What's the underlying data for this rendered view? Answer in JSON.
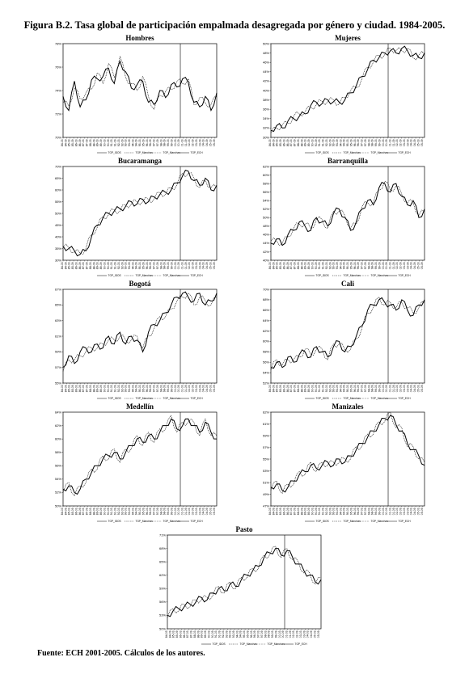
{
  "figure": {
    "title": "Figura B.2.  Tasa global de participación empalmada desagregada por género y ciudad. 1984-2005.",
    "source": "Fuente: ECH 2001-2005. Cálculos de los autores."
  },
  "legend_labels": [
    "TGP_IDOS",
    "TGP_Manchas",
    "TGP_Manchas",
    "TGP_ECH"
  ],
  "chart_data": [
    {
      "type": "line",
      "title": "Hombres",
      "ylim": [
        70,
        78
      ],
      "yticks": [
        "70%",
        "72%",
        "74%",
        "76%",
        "78%"
      ],
      "x_start": 1984,
      "x_end": 2005.75,
      "splice_at": 2000.6,
      "series": [
        {
          "values": [
            73.5,
            72.3,
            74.8,
            72.6,
            73.2,
            74.9,
            75.0,
            75.2,
            75.9,
            74.6,
            76.5,
            75.6,
            74.2,
            74.5,
            74.8,
            73.0,
            72.8,
            74.0,
            73.4,
            74.5,
            74.3,
            75.0,
            74.7,
            73.0,
            72.6,
            73.5,
            72.3,
            73.8
          ]
        },
        {
          "values": [
            73.0,
            72.7,
            74.2,
            73.3,
            73.8,
            74.1,
            75.5,
            74.6,
            76.3,
            75.1,
            76.9,
            75.1,
            74.6,
            74.0,
            75.2,
            73.5,
            72.4,
            73.6,
            73.9,
            74.1,
            74.8,
            74.6,
            75.0,
            72.8,
            73.4,
            72.9,
            72.8,
            73.5
          ]
        }
      ]
    },
    {
      "type": "line",
      "title": "Mujeres",
      "ylim": [
        30,
        50
      ],
      "yticks": [
        "30%",
        "32%",
        "34%",
        "36%",
        "38%",
        "40%",
        "42%",
        "44%",
        "46%",
        "48%",
        "50%"
      ],
      "x_start": 1984,
      "x_end": 2005.75,
      "splice_at": 2000.6,
      "series": [
        {
          "values": [
            31.5,
            32.5,
            32.0,
            33.5,
            34.0,
            34.5,
            35.0,
            36.8,
            37.5,
            37.2,
            38.0,
            37.6,
            37.5,
            38.0,
            39.5,
            41.0,
            43.0,
            44.5,
            46.5,
            47.0,
            48.0,
            48.5,
            48.0,
            49.0,
            48.5,
            47.5,
            47.0,
            48.0
          ]
        },
        {
          "values": [
            31.0,
            32.0,
            32.6,
            33.0,
            34.5,
            35.0,
            35.5,
            36.4,
            37.0,
            37.7,
            37.6,
            38.0,
            37.1,
            38.5,
            40.0,
            40.6,
            42.5,
            45.0,
            46.0,
            47.5,
            47.6,
            49.0,
            48.5,
            48.5,
            49.0,
            47.0,
            47.5,
            47.8
          ]
        }
      ]
    },
    {
      "type": "line",
      "title": "Bucaramanga",
      "ylim": [
        30,
        70
      ],
      "yticks": [
        "30%",
        "35%",
        "40%",
        "45%",
        "50%",
        "55%",
        "60%",
        "65%",
        "70%"
      ],
      "x_start": 1984,
      "x_end": 2005.75,
      "splice_at": 2000.6,
      "series": [
        {
          "values": [
            36.0,
            35.0,
            34.0,
            32.5,
            34.0,
            40.0,
            45.0,
            48.0,
            50.0,
            51.0,
            52.0,
            53.0,
            55.0,
            54.0,
            56.0,
            55.0,
            57.0,
            58.0,
            59.0,
            60.0,
            63.0,
            66.0,
            68.0,
            64.0,
            62.0,
            65.0,
            60.0,
            62.0
          ]
        },
        {
          "values": [
            35.5,
            35.5,
            33.5,
            33.0,
            35.0,
            41.0,
            44.0,
            48.5,
            49.5,
            51.5,
            51.0,
            53.5,
            54.0,
            55.0,
            55.0,
            56.0,
            56.0,
            59.0,
            58.0,
            61.0,
            62.0,
            67.0,
            67.0,
            65.0,
            61.0,
            64.0,
            61.0,
            61.0
          ]
        }
      ]
    },
    {
      "type": "line",
      "title": "Barranquilla",
      "ylim": [
        40,
        62
      ],
      "yticks": [
        "40%",
        "42%",
        "44%",
        "46%",
        "48%",
        "50%",
        "52%",
        "54%",
        "56%",
        "58%",
        "60%",
        "62%"
      ],
      "x_start": 1984,
      "x_end": 2005.75,
      "splice_at": 2000.6,
      "series": [
        {
          "values": [
            44.0,
            45.0,
            43.5,
            46.0,
            47.0,
            49.0,
            48.0,
            47.0,
            50.0,
            49.0,
            48.0,
            51.0,
            52.0,
            50.0,
            47.0,
            49.0,
            52.0,
            54.0,
            53.0,
            57.0,
            58.0,
            56.0,
            58.0,
            55.0,
            53.0,
            54.0,
            50.0,
            52.0
          ]
        },
        {
          "values": [
            44.5,
            44.5,
            44.0,
            45.5,
            47.5,
            48.5,
            48.5,
            47.5,
            49.5,
            49.5,
            47.5,
            51.5,
            51.5,
            50.5,
            47.5,
            48.5,
            52.5,
            53.5,
            53.5,
            56.5,
            58.5,
            56.5,
            57.5,
            55.5,
            53.5,
            53.5,
            50.5,
            51.5
          ]
        }
      ]
    },
    {
      "type": "line",
      "title": "Bogotá",
      "ylim": [
        55,
        67
      ],
      "yticks": [
        "55%",
        "57%",
        "59%",
        "61%",
        "63%",
        "65%",
        "67%"
      ],
      "x_start": 1984,
      "x_end": 2005.75,
      "splice_at": 2000.6,
      "series": [
        {
          "values": [
            57.0,
            58.5,
            57.5,
            59.0,
            59.5,
            59.0,
            60.0,
            59.5,
            61.0,
            60.0,
            61.5,
            60.0,
            61.0,
            60.5,
            59.0,
            61.5,
            62.5,
            63.0,
            64.0,
            65.0,
            66.0,
            66.5,
            66.0,
            65.5,
            66.5,
            65.0,
            65.5,
            66.5
          ]
        },
        {
          "values": [
            56.5,
            58.0,
            58.0,
            58.5,
            59.0,
            59.5,
            59.5,
            60.0,
            60.5,
            60.5,
            61.0,
            60.5,
            60.5,
            61.0,
            59.5,
            61.0,
            62.0,
            63.5,
            63.5,
            64.5,
            65.5,
            66.0,
            66.5,
            65.0,
            66.0,
            65.5,
            65.0,
            66.0
          ]
        }
      ]
    },
    {
      "type": "line",
      "title": "Cali",
      "ylim": [
        52,
        70
      ],
      "yticks": [
        "52%",
        "54%",
        "56%",
        "58%",
        "60%",
        "62%",
        "64%",
        "66%",
        "68%",
        "70%"
      ],
      "x_start": 1984,
      "x_end": 2005.75,
      "splice_at": 2000.6,
      "series": [
        {
          "values": [
            55.0,
            56.0,
            55.0,
            57.0,
            56.0,
            57.5,
            58.0,
            57.0,
            59.0,
            58.0,
            57.0,
            59.0,
            60.0,
            58.0,
            59.0,
            61.0,
            63.0,
            66.0,
            67.0,
            68.0,
            67.5,
            67.0,
            66.0,
            68.0,
            66.0,
            65.0,
            67.0,
            68.0
          ]
        },
        {
          "values": [
            54.5,
            56.5,
            55.5,
            56.5,
            56.5,
            57.0,
            58.5,
            57.5,
            58.5,
            58.5,
            56.5,
            59.5,
            59.5,
            58.5,
            58.5,
            60.5,
            62.5,
            65.5,
            66.5,
            68.5,
            67.0,
            67.5,
            66.5,
            67.5,
            66.5,
            65.5,
            66.5,
            67.5
          ]
        }
      ]
    },
    {
      "type": "line",
      "title": "Medellín",
      "ylim": [
        50,
        64
      ],
      "yticks": [
        "50%",
        "52%",
        "54%",
        "56%",
        "58%",
        "60%",
        "62%",
        "64%"
      ],
      "x_start": 1984,
      "x_end": 2005.75,
      "splice_at": 2000.6,
      "series": [
        {
          "values": [
            52.5,
            53.0,
            52.0,
            52.5,
            54.0,
            55.0,
            56.0,
            57.0,
            57.5,
            58.0,
            57.0,
            58.0,
            59.0,
            60.0,
            59.5,
            60.5,
            60.0,
            61.0,
            62.0,
            63.0,
            61.5,
            62.0,
            63.0,
            62.0,
            61.0,
            62.5,
            61.0,
            60.0
          ]
        },
        {
          "values": [
            52.0,
            53.5,
            51.5,
            53.0,
            53.5,
            55.5,
            55.5,
            57.5,
            57.0,
            58.5,
            56.5,
            58.5,
            58.5,
            60.5,
            59.0,
            61.0,
            59.5,
            61.5,
            61.5,
            63.5,
            61.0,
            62.5,
            62.5,
            62.5,
            60.5,
            63.0,
            60.5,
            60.5
          ]
        }
      ]
    },
    {
      "type": "line",
      "title": "Manizales",
      "ylim": [
        47,
        62
      ],
      "yticks": [
        "47%",
        "49%",
        "51%",
        "53%",
        "55%",
        "57%",
        "59%",
        "61%",
        "62%"
      ],
      "x_start": 1984,
      "x_end": 2005.75,
      "splice_at": 2000.6,
      "series": [
        {
          "values": [
            50.0,
            50.5,
            49.5,
            50.0,
            51.0,
            52.0,
            52.5,
            53.5,
            53.0,
            53.5,
            54.0,
            53.5,
            54.5,
            54.0,
            55.0,
            56.0,
            57.0,
            58.0,
            59.0,
            60.0,
            61.0,
            61.5,
            60.0,
            59.0,
            57.0,
            56.0,
            55.0,
            53.5
          ]
        },
        {
          "values": [
            49.5,
            51.0,
            49.0,
            50.5,
            50.5,
            52.5,
            52.0,
            54.0,
            52.5,
            54.0,
            53.5,
            54.0,
            54.0,
            54.5,
            54.5,
            56.5,
            56.5,
            58.5,
            58.5,
            60.5,
            60.5,
            62.0,
            59.5,
            59.5,
            56.5,
            56.5,
            54.5,
            54.0
          ]
        }
      ]
    },
    {
      "type": "line",
      "title": "Pasto",
      "ylim": [
        50,
        71
      ],
      "yticks": [
        "50%",
        "53%",
        "56%",
        "59%",
        "62%",
        "65%",
        "68%",
        "71%"
      ],
      "x_start": 1984,
      "x_end": 2005.75,
      "splice_at": 2000.6,
      "series": [
        {
          "values": [
            53.0,
            54.0,
            54.5,
            55.0,
            55.5,
            56.0,
            57.0,
            56.5,
            58.0,
            59.0,
            58.5,
            60.0,
            59.5,
            61.0,
            62.0,
            63.0,
            64.0,
            66.0,
            67.0,
            68.0,
            66.5,
            67.5,
            66.0,
            64.5,
            63.0,
            62.0,
            60.5,
            61.0
          ]
        },
        {
          "values": [
            52.5,
            54.5,
            54.0,
            55.5,
            55.0,
            56.5,
            56.5,
            57.0,
            57.5,
            59.5,
            58.0,
            60.5,
            59.0,
            61.5,
            61.5,
            63.5,
            63.5,
            66.5,
            66.5,
            68.5,
            66.0,
            68.0,
            65.5,
            65.0,
            62.5,
            62.5,
            60.0,
            61.5
          ]
        }
      ]
    }
  ]
}
